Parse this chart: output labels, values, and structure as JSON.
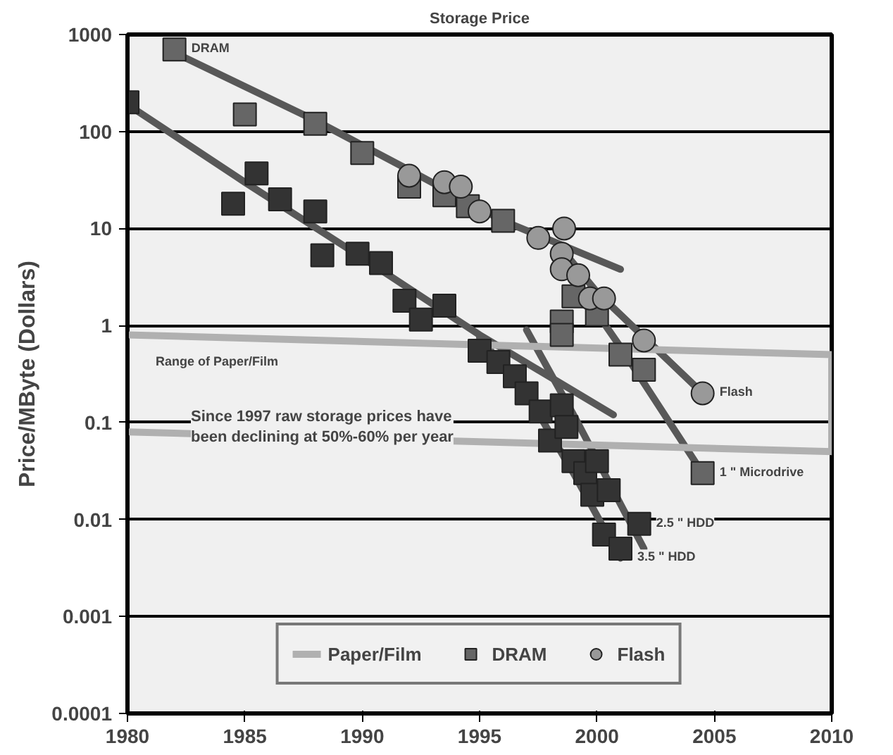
{
  "chart_data": {
    "type": "scatter",
    "title": "Storage Price",
    "ylabel": "Price/MByte (Dollars)",
    "log": "y",
    "grid": "y",
    "legend": "bottom",
    "xlim": [
      1980,
      2010
    ],
    "xticks": [
      1980,
      1985,
      1990,
      1995,
      2000,
      2005,
      2010
    ],
    "ylim": [
      0.0001,
      1000
    ],
    "yticks": [
      0.0001,
      0.001,
      0.01,
      0.1,
      1,
      10,
      100,
      1000
    ],
    "series": [
      {
        "type": "line",
        "color": "#585858",
        "marker": "none",
        "x": [
          1982,
          1988,
          1992,
          1996,
          2001
        ],
        "values": [
          650,
          130,
          40,
          12,
          3.8
        ]
      },
      {
        "type": "line",
        "color": "#585858",
        "marker": "none",
        "x": [
          1980,
          1985,
          1990,
          1995,
          2000.7
        ],
        "values": [
          190,
          30,
          5,
          0.8,
          0.12
        ]
      },
      {
        "type": "line",
        "color": "#585858",
        "marker": "none",
        "x": [
          1995,
          1997,
          1999,
          2001
        ],
        "values": [
          0.75,
          0.2,
          0.03,
          0.004
        ]
      },
      {
        "type": "line",
        "color": "#585858",
        "marker": "none",
        "x": [
          1997,
          1999,
          2002
        ],
        "values": [
          0.9,
          0.12,
          0.005
        ]
      },
      {
        "type": "line",
        "color": "#585858",
        "marker": "none",
        "x": [
          1999,
          2001,
          2004.5
        ],
        "values": [
          3,
          0.6,
          0.03
        ]
      },
      {
        "type": "line",
        "color": "#585858",
        "marker": "none",
        "x": [
          1998.3,
          2000,
          2004.5
        ],
        "values": [
          7,
          2.2,
          0.2
        ]
      },
      {
        "name": "Paper/Film",
        "type": "line",
        "color": "#b0b0b0",
        "marker": "none",
        "x": [
          1980,
          2010,
          2010,
          1980
        ],
        "values": [
          0.8,
          0.5,
          0.05,
          0.08
        ]
      },
      {
        "color": "#333333",
        "marker": "square",
        "x": [
          1980,
          1984.5,
          1985.5,
          1986.5,
          1988,
          1988.3,
          1989.8,
          1990.8,
          1991.8,
          1992.5,
          1993.5,
          1995,
          1995.8,
          1996.5,
          1997,
          1997.6,
          1998,
          1998.5,
          1998.7,
          1999,
          1999.5,
          1999.8,
          2000,
          2000.5,
          2000.3,
          2001,
          2001.8
        ],
        "values": [
          200,
          18,
          37,
          20,
          15,
          5.3,
          5.5,
          4.4,
          1.8,
          1.15,
          1.6,
          0.55,
          0.42,
          0.3,
          0.2,
          0.13,
          0.065,
          0.15,
          0.09,
          0.04,
          0.03,
          0.018,
          0.04,
          0.02,
          0.007,
          0.005,
          0.009
        ]
      },
      {
        "name": "DRAM",
        "color": "#666666",
        "marker": "square",
        "x": [
          1982,
          1985,
          1988,
          1990,
          1992,
          1993.5,
          1994.5,
          1996,
          1998.5,
          1998.5,
          1999,
          2000,
          2001,
          2002,
          2004.5
        ],
        "values": [
          700,
          150,
          120,
          60,
          27,
          22,
          17,
          12,
          1.1,
          0.8,
          2,
          1.3,
          0.5,
          0.35,
          0.03
        ]
      },
      {
        "name": "Flash",
        "color": "#999999",
        "marker": "circle",
        "x": [
          1992,
          1993.5,
          1994.2,
          1995,
          1997.5,
          1998.6,
          1998.5,
          1998.5,
          1999.2,
          1999.7,
          2000.3,
          2002,
          2004.5
        ],
        "values": [
          35,
          30,
          27,
          15,
          8,
          10,
          5.5,
          3.8,
          3.3,
          1.9,
          1.9,
          0.7,
          0.2
        ]
      }
    ],
    "annotations": [
      {
        "text": "DRAM",
        "x": 1982,
        "y": 700
      },
      {
        "text": "Flash",
        "x": 2004.5,
        "y": 0.2
      },
      {
        "text": "1 \" Microdrive",
        "x": 2004.5,
        "y": 0.03
      },
      {
        "text": "2.5 \" HDD",
        "x": 2001.8,
        "y": 0.009
      },
      {
        "text": "3.5 \" HDD",
        "x": 2001,
        "y": 0.004
      },
      "Range of Paper/Film",
      "Since 1997 raw storage prices have\nbeen declining at 50%-60% per year"
    ]
  }
}
